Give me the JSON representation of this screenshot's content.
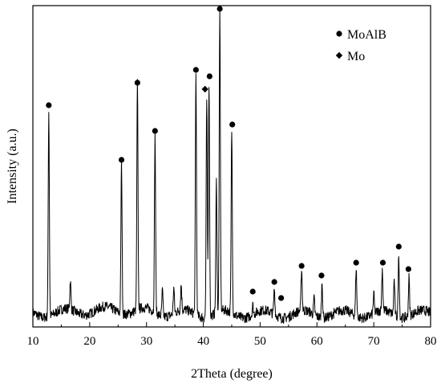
{
  "chart_data": {
    "type": "line",
    "title": "",
    "xlabel": "2Theta (degree)",
    "ylabel": "Intensity (a.u.)",
    "xlim": [
      10,
      80
    ],
    "ylim": [
      0,
      100
    ],
    "x_ticks": [
      10,
      20,
      30,
      40,
      50,
      60,
      70,
      80
    ],
    "y_ticks_shown": false,
    "grid": false,
    "legend_position": "top-right",
    "legend": [
      {
        "name": "MoAlB",
        "marker": "circle"
      },
      {
        "name": "Mo",
        "marker": "diamond"
      }
    ],
    "baseline": 4,
    "peaks": [
      {
        "x": 12.8,
        "y": 68
      },
      {
        "x": 16.6,
        "y": 13
      },
      {
        "x": 25.6,
        "y": 51
      },
      {
        "x": 28.4,
        "y": 75
      },
      {
        "x": 31.5,
        "y": 59
      },
      {
        "x": 32.8,
        "y": 12
      },
      {
        "x": 34.8,
        "y": 12
      },
      {
        "x": 36.1,
        "y": 12
      },
      {
        "x": 38.7,
        "y": 79
      },
      {
        "x": 40.6,
        "y": 72
      },
      {
        "x": 41.0,
        "y": 77
      },
      {
        "x": 42.3,
        "y": 45
      },
      {
        "x": 42.9,
        "y": 97
      },
      {
        "x": 45.0,
        "y": 61
      },
      {
        "x": 48.7,
        "y": 7
      },
      {
        "x": 52.5,
        "y": 12
      },
      {
        "x": 57.3,
        "y": 17
      },
      {
        "x": 59.5,
        "y": 9
      },
      {
        "x": 60.9,
        "y": 15
      },
      {
        "x": 66.9,
        "y": 19
      },
      {
        "x": 70.0,
        "y": 10
      },
      {
        "x": 71.5,
        "y": 17
      },
      {
        "x": 73.6,
        "y": 15
      },
      {
        "x": 74.4,
        "y": 23
      },
      {
        "x": 76.2,
        "y": 16
      }
    ],
    "markers": [
      {
        "x": 12.8,
        "y": 69,
        "phase": "MoAlB"
      },
      {
        "x": 25.6,
        "y": 52,
        "phase": "MoAlB"
      },
      {
        "x": 28.4,
        "y": 76,
        "phase": "MoAlB"
      },
      {
        "x": 31.5,
        "y": 61,
        "phase": "MoAlB"
      },
      {
        "x": 38.7,
        "y": 80,
        "phase": "MoAlB"
      },
      {
        "x": 40.3,
        "y": 74,
        "phase": "Mo"
      },
      {
        "x": 41.1,
        "y": 78,
        "phase": "MoAlB"
      },
      {
        "x": 42.9,
        "y": 99,
        "phase": "MoAlB"
      },
      {
        "x": 45.1,
        "y": 63,
        "phase": "MoAlB"
      },
      {
        "x": 48.7,
        "y": 11,
        "phase": "MoAlB"
      },
      {
        "x": 52.5,
        "y": 14,
        "phase": "MoAlB"
      },
      {
        "x": 53.7,
        "y": 9,
        "phase": "MoAlB"
      },
      {
        "x": 57.3,
        "y": 19,
        "phase": "MoAlB"
      },
      {
        "x": 60.8,
        "y": 16,
        "phase": "MoAlB"
      },
      {
        "x": 66.9,
        "y": 20,
        "phase": "MoAlB"
      },
      {
        "x": 71.6,
        "y": 20,
        "phase": "MoAlB"
      },
      {
        "x": 74.4,
        "y": 25,
        "phase": "MoAlB"
      },
      {
        "x": 76.1,
        "y": 18,
        "phase": "MoAlB"
      }
    ]
  }
}
